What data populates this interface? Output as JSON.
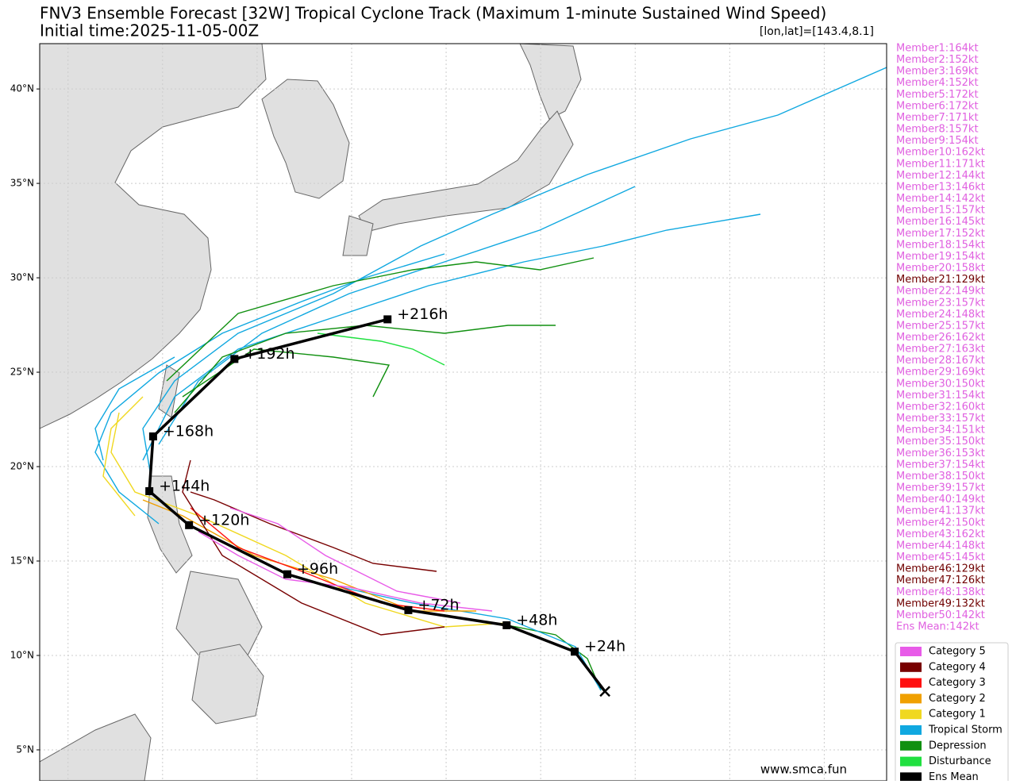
{
  "map": {
    "title": "FNV3 Ensemble Forecast [32W] Tropical Cyclone Track (Maximum 1-minute Sustained Wind Speed)",
    "subtitle": "Initial time:2025-11-05-00Z",
    "position_label": "[lon,lat]=[143.4,8.1]",
    "lonlim": [
      113.5,
      158.3
    ],
    "latlim": [
      3.36,
      42.4
    ],
    "lon_grid": [
      115,
      120,
      125,
      130,
      135,
      140,
      145,
      150,
      155
    ],
    "lat_ticks": [
      {
        "value": 40,
        "label": "40°N"
      },
      {
        "value": 35,
        "label": "35°N"
      },
      {
        "value": 30,
        "label": "30°N"
      },
      {
        "value": 25,
        "label": "25°N"
      },
      {
        "value": 20,
        "label": "20°N"
      },
      {
        "value": 15,
        "label": "15°N"
      },
      {
        "value": 10,
        "label": "10°N"
      },
      {
        "value": 5,
        "label": "5°N"
      }
    ],
    "mean_track": {
      "color": "#000000",
      "lon": [
        143.4,
        141.8,
        138.2,
        133.0,
        126.6,
        121.4,
        119.3,
        119.5,
        123.8,
        131.9
      ],
      "lat": [
        8.1,
        10.2,
        11.6,
        12.4,
        14.3,
        16.9,
        18.7,
        21.6,
        25.7,
        27.8
      ],
      "labels": [
        null,
        "+24h",
        "+48h",
        "+72h",
        "+96h",
        "+120h",
        "+144h",
        "+168h",
        "+192h",
        "+216h"
      ]
    },
    "members": [
      {
        "text": "Member1:164kt",
        "color": "#e060e0"
      },
      {
        "text": "Member2:152kt",
        "color": "#e060e0"
      },
      {
        "text": "Member3:169kt",
        "color": "#e060e0"
      },
      {
        "text": "Member4:152kt",
        "color": "#e060e0"
      },
      {
        "text": "Member5:172kt",
        "color": "#e060e0"
      },
      {
        "text": "Member6:172kt",
        "color": "#e060e0"
      },
      {
        "text": "Member7:171kt",
        "color": "#e060e0"
      },
      {
        "text": "Member8:157kt",
        "color": "#e060e0"
      },
      {
        "text": "Member9:154kt",
        "color": "#e060e0"
      },
      {
        "text": "Member10:162kt",
        "color": "#e060e0"
      },
      {
        "text": "Member11:171kt",
        "color": "#e060e0"
      },
      {
        "text": "Member12:144kt",
        "color": "#e060e0"
      },
      {
        "text": "Member13:146kt",
        "color": "#e060e0"
      },
      {
        "text": "Member14:142kt",
        "color": "#e060e0"
      },
      {
        "text": "Member15:157kt",
        "color": "#e060e0"
      },
      {
        "text": "Member16:145kt",
        "color": "#e060e0"
      },
      {
        "text": "Member17:152kt",
        "color": "#e060e0"
      },
      {
        "text": "Member18:154kt",
        "color": "#e060e0"
      },
      {
        "text": "Member19:154kt",
        "color": "#e060e0"
      },
      {
        "text": "Member20:158kt",
        "color": "#e060e0"
      },
      {
        "text": "Member21:129kt",
        "color": "#700000"
      },
      {
        "text": "Member22:149kt",
        "color": "#e060e0"
      },
      {
        "text": "Member23:157kt",
        "color": "#e060e0"
      },
      {
        "text": "Member24:148kt",
        "color": "#e060e0"
      },
      {
        "text": "Member25:157kt",
        "color": "#e060e0"
      },
      {
        "text": "Member26:162kt",
        "color": "#e060e0"
      },
      {
        "text": "Member27:163kt",
        "color": "#e060e0"
      },
      {
        "text": "Member28:167kt",
        "color": "#e060e0"
      },
      {
        "text": "Member29:169kt",
        "color": "#e060e0"
      },
      {
        "text": "Member30:150kt",
        "color": "#e060e0"
      },
      {
        "text": "Member31:154kt",
        "color": "#e060e0"
      },
      {
        "text": "Member32:160kt",
        "color": "#e060e0"
      },
      {
        "text": "Member33:157kt",
        "color": "#e060e0"
      },
      {
        "text": "Member34:151kt",
        "color": "#e060e0"
      },
      {
        "text": "Member35:150kt",
        "color": "#e060e0"
      },
      {
        "text": "Member36:153kt",
        "color": "#e060e0"
      },
      {
        "text": "Member37:154kt",
        "color": "#e060e0"
      },
      {
        "text": "Member38:150kt",
        "color": "#e060e0"
      },
      {
        "text": "Member39:157kt",
        "color": "#e060e0"
      },
      {
        "text": "Member40:149kt",
        "color": "#e060e0"
      },
      {
        "text": "Member41:137kt",
        "color": "#e060e0"
      },
      {
        "text": "Member42:150kt",
        "color": "#e060e0"
      },
      {
        "text": "Member43:162kt",
        "color": "#e060e0"
      },
      {
        "text": "Member44:148kt",
        "color": "#e060e0"
      },
      {
        "text": "Member45:145kt",
        "color": "#e060e0"
      },
      {
        "text": "Member46:129kt",
        "color": "#700000"
      },
      {
        "text": "Member47:126kt",
        "color": "#700000"
      },
      {
        "text": "Member48:138kt",
        "color": "#e060e0"
      },
      {
        "text": "Member49:132kt",
        "color": "#700000"
      },
      {
        "text": "Member50:142kt",
        "color": "#e060e0"
      },
      {
        "text": "Ens Mean:142kt",
        "color": "#e060e0"
      }
    ],
    "legend": [
      {
        "name": "Category 5",
        "color": "#e85be8"
      },
      {
        "name": "Category 4",
        "color": "#780000"
      },
      {
        "name": "Category 3",
        "color": "#ff1010"
      },
      {
        "name": "Category 2",
        "color": "#f0a000"
      },
      {
        "name": "Category 1",
        "color": "#f0d820"
      },
      {
        "name": "Tropical Storm",
        "color": "#10a8e0"
      },
      {
        "name": "Depression",
        "color": "#109010"
      },
      {
        "name": "Disturbance",
        "color": "#20e040"
      },
      {
        "name": "Ens Mean",
        "color": "#000000"
      }
    ],
    "watermark": "www.smca.fun"
  }
}
